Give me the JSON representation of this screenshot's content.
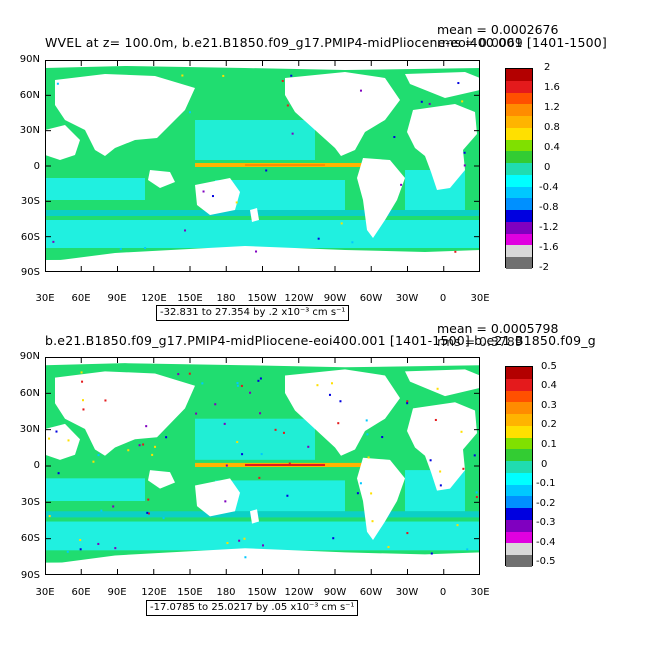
{
  "panels": [
    {
      "title": "WVEL at z= 100.0m, b.e21.B1850.f09_g17.PMIP4-midPliocene-eoi400.001 [1401-1500]",
      "mean_text": "mean = 0.0002676",
      "rms_text": "rms = 0.0069",
      "range_text": "-32.831 to 27.354 by .2 x10⁻³ cm s⁻¹",
      "y_ticks": [
        "90N",
        "60N",
        "30N",
        "0",
        "30S",
        "60S",
        "90S"
      ],
      "x_ticks": [
        "30E",
        "60E",
        "90E",
        "120E",
        "150E",
        "180",
        "150W",
        "120W",
        "90W",
        "60W",
        "30W",
        "0",
        "30E"
      ],
      "colorbar_labels": [
        "2",
        "1.6",
        "1.2",
        "0.8",
        "0.4",
        "0",
        "-0.4",
        "-0.8",
        "-1.2",
        "-1.6",
        "-2"
      ]
    },
    {
      "title": "b.e21.B1850.f09_g17.PMIP4-midPliocene-eoi400.001 [1401-1500] b.e21.B1850.f09_g",
      "mean_text": "mean = 0.0005798",
      "rms_text": "rms = 0.3789",
      "range_text": "-17.0785 to 25.0217 by .05 x10⁻³ cm s⁻¹",
      "y_ticks": [
        "90N",
        "60N",
        "30N",
        "0",
        "30S",
        "60S",
        "90S"
      ],
      "x_ticks": [
        "30E",
        "60E",
        "90E",
        "120E",
        "150E",
        "180",
        "150W",
        "120W",
        "90W",
        "60W",
        "30W",
        "0",
        "30E"
      ],
      "colorbar_labels": [
        "0.5",
        "0.4",
        "0.3",
        "0.2",
        "0.1",
        "0",
        "-0.1",
        "-0.2",
        "-0.3",
        "-0.4",
        "-0.5"
      ]
    }
  ],
  "colorbar_colors": [
    "#b30000",
    "#e41a1c",
    "#ff5000",
    "#ff8c00",
    "#ffb400",
    "#ffe000",
    "#80e000",
    "#33cc33",
    "#20dcb0",
    "#00ffff",
    "#00c8ff",
    "#0090ff",
    "#0000e0",
    "#8000c0",
    "#e000e0",
    "#d8d8d8",
    "#707070"
  ],
  "map_colors": {
    "ocean_main": "#20dd70",
    "ocean_cyan": "#20f0e0",
    "ocean_deep": "#00c8ff",
    "land": "#ffffff"
  }
}
